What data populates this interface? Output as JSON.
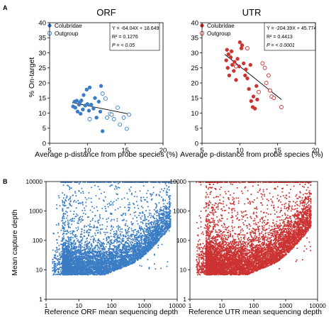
{
  "panel_labels": [
    "A",
    "B"
  ],
  "chart_data": [
    {
      "type": "scatter",
      "title": "ORF",
      "xlabel": "Average p-distance from probe species (%)",
      "ylabel": "% On-target",
      "xlim": [
        5,
        20
      ],
      "ylim": [
        0,
        40
      ],
      "x_ticks": [
        5,
        10,
        15,
        20
      ],
      "y_ticks": [
        0,
        5,
        10,
        15,
        20,
        25,
        30,
        35,
        40
      ],
      "grid": false,
      "legend_position": "top-left",
      "color": "#3a7dc4",
      "series": [
        {
          "name": "Colubridae",
          "marker": "filled-circle",
          "x": [
            8.1,
            8.3,
            8.4,
            8.6,
            8.7,
            8.9,
            9.0,
            9.1,
            9.2,
            9.4,
            9.5,
            9.7,
            9.9,
            10.0,
            10.2,
            10.3,
            10.5,
            10.8,
            11.0,
            11.2,
            11.5,
            11.7,
            11.8,
            12.0
          ],
          "y": [
            12.2,
            13.8,
            11.8,
            14.1,
            10.5,
            12.8,
            13.5,
            9.8,
            14.2,
            11.2,
            16.0,
            12.5,
            17.8,
            13.0,
            10.8,
            18.5,
            12.8,
            11.5,
            15.0,
            8.5,
            13.8,
            10.5,
            19.0,
            4.0
          ]
        },
        {
          "name": "Outgroup",
          "marker": "open-circle",
          "x": [
            10.3,
            12.0,
            12.4,
            12.6,
            13.0,
            13.2,
            13.5,
            14.0,
            14.3,
            14.8,
            15.2,
            15.5
          ],
          "y": [
            8.0,
            16.5,
            14.8,
            8.5,
            9.8,
            9.5,
            8.0,
            11.8,
            6.2,
            8.5,
            4.8,
            9.5
          ]
        }
      ],
      "fit_line": {
        "x": [
          8,
          15.5
        ],
        "y": [
          13.5,
          9.7
        ]
      },
      "annotation": [
        "Y = -64.04X + 18.649",
        "R² = 0.1276",
        "P = < 0.05"
      ]
    },
    {
      "type": "scatter",
      "title": "UTR",
      "xlabel": "Average p-distance from probe species (%)",
      "ylabel": "",
      "xlim": [
        5,
        20
      ],
      "ylim": [
        0,
        40
      ],
      "x_ticks": [
        5,
        10,
        15,
        20
      ],
      "y_ticks": [
        0,
        5,
        10,
        15,
        20,
        25,
        30,
        35,
        40
      ],
      "grid": false,
      "legend_position": "top-left",
      "color": "#cc3333",
      "series": [
        {
          "name": "Colubridae",
          "marker": "filled-circle",
          "x": [
            8.2,
            8.3,
            8.4,
            8.5,
            8.6,
            8.8,
            8.9,
            9.0,
            9.2,
            9.3,
            9.5,
            9.7,
            9.9,
            10.0,
            10.2,
            10.3,
            10.5,
            10.7,
            10.8,
            11.0,
            11.2,
            11.4,
            11.5,
            11.7,
            11.8,
            12.0,
            12.2,
            12.3
          ],
          "y": [
            27.5,
            31.0,
            25.0,
            29.5,
            22.5,
            28.5,
            30.5,
            26.0,
            24.0,
            27.0,
            21.0,
            28.0,
            25.5,
            33.5,
            31.5,
            32.5,
            26.5,
            22.5,
            24.5,
            21.5,
            18.0,
            26.0,
            14.0,
            12.0,
            15.5,
            11.5,
            19.0,
            14.5
          ]
        },
        {
          "name": "Outgroup",
          "marker": "open-circle",
          "x": [
            9.5,
            11.0,
            12.5,
            13.0,
            13.3,
            13.5,
            13.8,
            14.0,
            14.2,
            14.5,
            15.5
          ],
          "y": [
            25.5,
            31.5,
            17.0,
            26.5,
            25.0,
            20.0,
            22.5,
            17.5,
            15.5,
            15.0,
            12.0
          ]
        }
      ],
      "fit_line": {
        "x": [
          8,
          15.5
        ],
        "y": [
          29.5,
          14.5
        ]
      },
      "annotation": [
        "Y = -204.39X + 45.774",
        "R² = 0.4413",
        "P = < 0.0001"
      ]
    },
    {
      "type": "scatter",
      "title": "",
      "xlabel": "Reference ORF mean sequencing depth",
      "ylabel": "Mean capture depth",
      "x_scale": "log",
      "y_scale": "log",
      "xlim": [
        1,
        10000
      ],
      "ylim": [
        1,
        10000
      ],
      "x_ticks": [
        1,
        10,
        100,
        1000,
        10000
      ],
      "y_ticks": [
        1,
        10,
        100,
        1000,
        10000
      ],
      "grid": false,
      "color": "#3a7dc4",
      "point_count": 6000,
      "density_note": "dense cloud; capture depth rises with sequencing depth (ORF)"
    },
    {
      "type": "scatter",
      "title": "",
      "xlabel": "Reference UTR mean sequencing depth",
      "ylabel": "",
      "x_scale": "log",
      "y_scale": "log",
      "xlim": [
        1,
        10000
      ],
      "ylim": [
        1,
        10000
      ],
      "x_ticks": [
        1,
        10,
        100,
        1000,
        10000
      ],
      "y_ticks": [
        1,
        10,
        100,
        1000,
        10000
      ],
      "grid": false,
      "color": "#cc3333",
      "point_count": 7000,
      "density_note": "dense cloud; capture depth rises with sequencing depth (UTR)"
    }
  ]
}
